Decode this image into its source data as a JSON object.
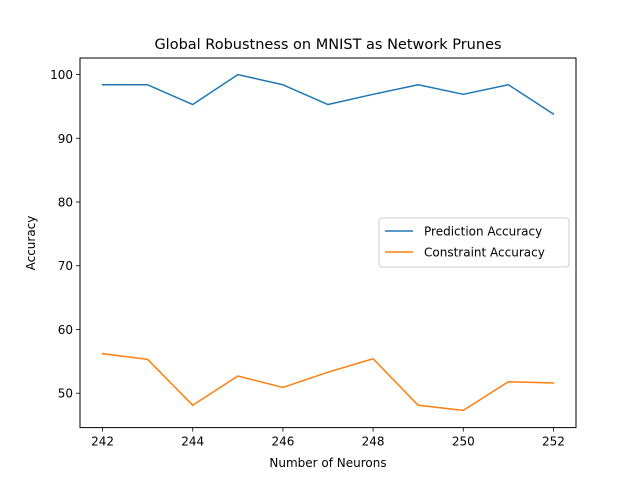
{
  "chart_data": {
    "type": "line",
    "title": "Global Robustness on MNIST as Network Prunes",
    "xlabel": "Number of Neurons",
    "ylabel": "Accuracy",
    "x": [
      242,
      243,
      244,
      245,
      246,
      247,
      248,
      249,
      250,
      251,
      252
    ],
    "xlim": [
      241.5,
      252.5
    ],
    "ylim": [
      44.6,
      102.6
    ],
    "xticks": [
      242,
      244,
      246,
      248,
      250,
      252
    ],
    "yticks": [
      50,
      60,
      70,
      80,
      90,
      100
    ],
    "grid": false,
    "legend_position": "center-right",
    "series": [
      {
        "name": "Prediction Accuracy",
        "color": "#1f77b4",
        "values": [
          98.4,
          98.4,
          95.3,
          100.0,
          98.4,
          95.3,
          96.9,
          98.4,
          96.9,
          98.4,
          93.8
        ]
      },
      {
        "name": "Constraint Accuracy",
        "color": "#ff7f0e",
        "values": [
          56.2,
          55.3,
          48.1,
          52.7,
          50.9,
          53.3,
          55.4,
          48.1,
          47.3,
          51.8,
          51.6
        ]
      }
    ]
  }
}
